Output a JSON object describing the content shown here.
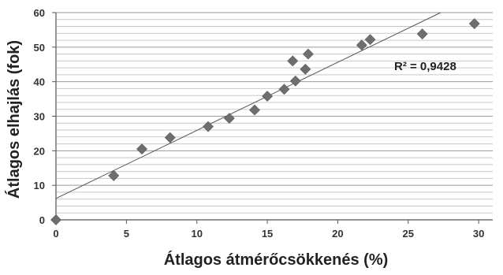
{
  "chart_data": {
    "type": "scatter",
    "xlabel": "Átlagos átmérőcsökkenés (%)",
    "ylabel": "Átlagos elhajlás (fok)",
    "xlim": [
      0,
      31
    ],
    "ylim": [
      0,
      60
    ],
    "x_ticks": [
      "0",
      "5",
      "10",
      "15",
      "20",
      "25",
      "30"
    ],
    "y_ticks": [
      "0",
      "10",
      "20",
      "30",
      "40",
      "50",
      "60"
    ],
    "grid": "horizontal",
    "marker": "diamond",
    "marker_color": "#6e6e6e",
    "points": [
      {
        "x": 0,
        "y": 0
      },
      {
        "x": 4.1,
        "y": 12.8
      },
      {
        "x": 6.1,
        "y": 20.5
      },
      {
        "x": 8.1,
        "y": 23.8
      },
      {
        "x": 10.8,
        "y": 27
      },
      {
        "x": 12.3,
        "y": 29.4
      },
      {
        "x": 14.1,
        "y": 31.8
      },
      {
        "x": 15.0,
        "y": 35.8
      },
      {
        "x": 16.2,
        "y": 37.8
      },
      {
        "x": 16.8,
        "y": 46
      },
      {
        "x": 17.0,
        "y": 40.2
      },
      {
        "x": 17.7,
        "y": 43.6
      },
      {
        "x": 17.9,
        "y": 48
      },
      {
        "x": 21.7,
        "y": 50.6
      },
      {
        "x": 22.3,
        "y": 52.2
      },
      {
        "x": 26.0,
        "y": 53.8
      },
      {
        "x": 29.7,
        "y": 56.8
      }
    ],
    "trendline": {
      "type": "linear",
      "from": [
        0,
        6.2
      ],
      "to": [
        27.3,
        60
      ]
    },
    "annotation": "R² = 0,9428"
  }
}
